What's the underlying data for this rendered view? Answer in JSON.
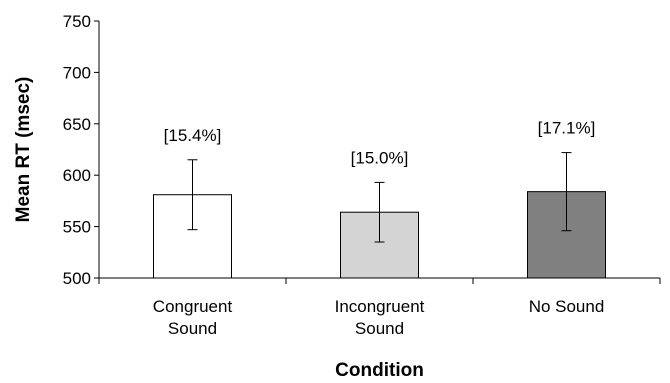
{
  "chart_data": {
    "type": "bar",
    "title": "",
    "xlabel": "Condition",
    "ylabel": "Mean RT (msec)",
    "ylim": [
      500,
      750
    ],
    "yticks": [
      500,
      550,
      600,
      650,
      700,
      750
    ],
    "grid": false,
    "categories": [
      [
        "Congruent",
        "Sound"
      ],
      [
        "Incongruent",
        "Sound"
      ],
      [
        "No Sound"
      ]
    ],
    "values": [
      581,
      564,
      584
    ],
    "error_low": [
      547,
      535,
      546
    ],
    "error_high": [
      615,
      593,
      622
    ],
    "bar_labels": [
      "[15.4%]",
      "[15.0%]",
      "[17.1%]"
    ],
    "bar_colors": [
      "#ffffff",
      "#d4d4d4",
      "#808080"
    ]
  }
}
